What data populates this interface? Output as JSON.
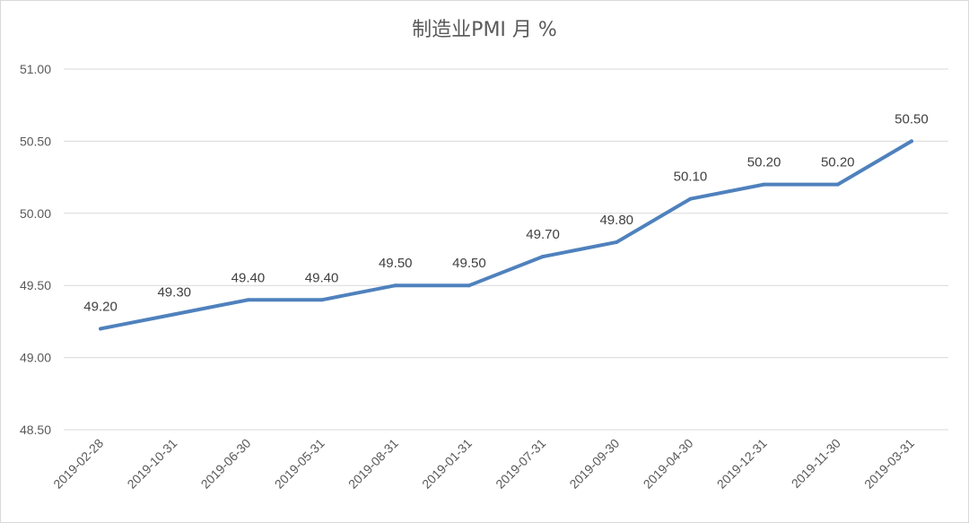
{
  "chart_data": {
    "type": "line",
    "title": "制造业PMI 月 %",
    "xlabel": "",
    "ylabel": "",
    "categories": [
      "2019-02-28",
      "2019-10-31",
      "2019-06-30",
      "2019-05-31",
      "2019-08-31",
      "2019-01-31",
      "2019-07-31",
      "2019-09-30",
      "2019-04-30",
      "2019-12-31",
      "2019-11-30",
      "2019-03-31"
    ],
    "series": [
      {
        "values": [
          49.2,
          49.3,
          49.4,
          49.4,
          49.5,
          49.5,
          49.7,
          49.8,
          50.1,
          50.2,
          50.2,
          50.5
        ]
      }
    ],
    "data_labels": [
      "49.20",
      "49.30",
      "49.40",
      "49.40",
      "49.50",
      "49.50",
      "49.70",
      "49.80",
      "50.10",
      "50.20",
      "50.20",
      "50.50"
    ],
    "ylim": [
      48.5,
      51.0
    ],
    "yticks": [
      48.5,
      49.0,
      49.5,
      50.0,
      50.5,
      51.0
    ],
    "ytick_labels": [
      "48.50",
      "49.00",
      "49.50",
      "50.00",
      "50.50",
      "51.00"
    ],
    "grid": true,
    "legend": "none",
    "colors": {
      "line": "#4f81bd",
      "grid": "#d9d9d9",
      "text": "#595959"
    }
  }
}
